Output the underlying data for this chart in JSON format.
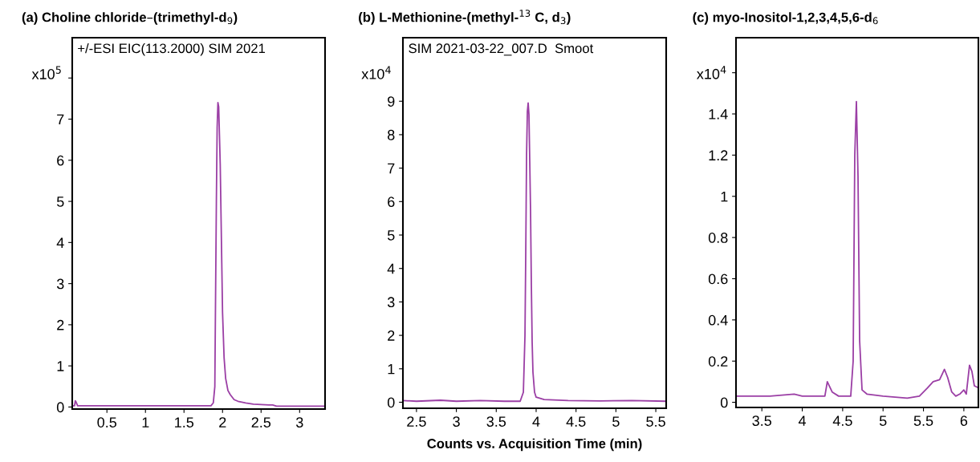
{
  "chart_data": [
    {
      "type": "line",
      "title": "(a) Choline chloride–(trimethyl-d$_{9}$)",
      "ylabel": "x10$^{5}$",
      "annotations": [
        "+/-ESI EIC(113.2000) SIM 2021"
      ],
      "xlim": [
        0.05,
        3.33
      ],
      "xticks": [
        0.5,
        1,
        1.5,
        2,
        2.5,
        3
      ],
      "ylim": [
        -0.05,
        8.98
      ],
      "yticks": [
        0,
        1,
        2,
        3,
        4,
        5,
        6,
        7,
        {
          "value": 8,
          "label": null
        }
      ],
      "grid": false,
      "legend": false,
      "series": [
        {
          "color": "#9b3fa5",
          "x": [
            0.05,
            0.08,
            0.09,
            0.1,
            0.12,
            0.5,
            1.0,
            1.5,
            1.85,
            1.88,
            1.9,
            1.91,
            1.92,
            1.93,
            1.94,
            1.95,
            1.96,
            1.97,
            1.98,
            1.99,
            2.0,
            2.02,
            2.04,
            2.07,
            2.1,
            2.15,
            2.2,
            2.3,
            2.4,
            2.5,
            2.6,
            2.65,
            2.7,
            3.0,
            3.33
          ],
          "values": [
            0.03,
            0.03,
            0.15,
            0.12,
            0.03,
            0.03,
            0.03,
            0.03,
            0.03,
            0.1,
            0.5,
            2.8,
            5.0,
            6.8,
            7.4,
            7.3,
            6.6,
            5.9,
            4.7,
            3.5,
            2.3,
            1.2,
            0.7,
            0.4,
            0.3,
            0.18,
            0.14,
            0.1,
            0.07,
            0.06,
            0.05,
            0.05,
            0.02,
            0.02,
            0.02
          ]
        }
      ]
    },
    {
      "type": "line",
      "title": "(b) L-Methionine-(methyl-$^{13}$ C, d$_{3}$)",
      "ylabel": "x10$^{4}$",
      "xlabel": "Counts vs. Acquisition Time (min)",
      "annotations": [
        "SIM 2021-03-22_007.D  Smoot"
      ],
      "xlim": [
        2.33,
        5.63
      ],
      "xticks": [
        2.5,
        3,
        3.5,
        4,
        4.5,
        5,
        5.5
      ],
      "ylim": [
        -0.18,
        10.9
      ],
      "yticks": [
        0,
        1,
        2,
        3,
        4,
        5,
        6,
        7,
        8,
        9
      ],
      "grid": false,
      "legend": false,
      "series": [
        {
          "color": "#9b3fa5",
          "x": [
            2.33,
            2.5,
            2.8,
            3.0,
            3.3,
            3.6,
            3.8,
            3.84,
            3.86,
            3.87,
            3.88,
            3.89,
            3.9,
            3.91,
            3.92,
            3.93,
            3.94,
            3.95,
            3.96,
            3.98,
            4.0,
            4.1,
            4.4,
            4.8,
            5.2,
            5.63
          ],
          "values": [
            0.05,
            0.03,
            0.06,
            0.03,
            0.05,
            0.03,
            0.03,
            0.3,
            2.0,
            4.5,
            7.4,
            8.7,
            8.95,
            8.6,
            7.2,
            5.7,
            3.5,
            1.8,
            0.9,
            0.3,
            0.15,
            0.08,
            0.05,
            0.04,
            0.05,
            0.03
          ]
        }
      ]
    },
    {
      "type": "line",
      "title": "(c) myo-Inositol-1,2,3,4,5,6-d$_{6}$",
      "ylabel": "x10$^{4}$",
      "xlim": [
        3.18,
        6.18
      ],
      "xticks": [
        3.5,
        4,
        4.5,
        5,
        5.5,
        6
      ],
      "ylim": [
        -0.025,
        1.77
      ],
      "yticks": [
        0,
        0.2,
        0.4,
        0.6,
        0.8,
        1,
        1.2,
        1.4,
        {
          "value": 1.6,
          "label": null
        }
      ],
      "grid": false,
      "legend": false,
      "series": [
        {
          "color": "#9b3fa5",
          "x": [
            3.18,
            3.3,
            3.6,
            3.9,
            4.0,
            4.28,
            4.31,
            4.37,
            4.45,
            4.6,
            4.63,
            4.65,
            4.67,
            4.69,
            4.71,
            4.74,
            4.8,
            5.0,
            5.3,
            5.45,
            5.55,
            5.62,
            5.7,
            5.76,
            5.8,
            5.85,
            5.9,
            5.95,
            6.0,
            6.03,
            6.07,
            6.1,
            6.13,
            6.18
          ],
          "values": [
            0.03,
            0.03,
            0.03,
            0.04,
            0.03,
            0.03,
            0.1,
            0.05,
            0.03,
            0.03,
            0.2,
            1.2,
            1.46,
            1.1,
            0.3,
            0.06,
            0.04,
            0.03,
            0.02,
            0.03,
            0.07,
            0.1,
            0.11,
            0.16,
            0.12,
            0.05,
            0.03,
            0.04,
            0.06,
            0.04,
            0.18,
            0.15,
            0.08,
            0.07
          ]
        }
      ]
    }
  ]
}
